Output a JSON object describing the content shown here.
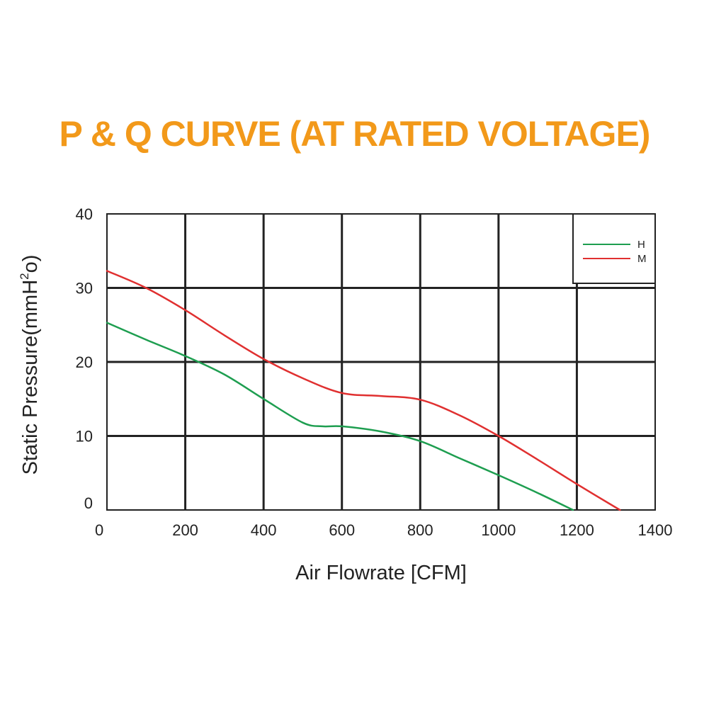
{
  "chart_data": {
    "type": "line",
    "title": "P & Q CURVE (AT RATED VOLTAGE)",
    "xlabel": "Air  Flowrate   [CFM]",
    "ylabel_base": "Static Pressure(mmH",
    "ylabel_sup": "2",
    "ylabel_end": "o)",
    "xlim": [
      0,
      1400
    ],
    "ylim": [
      0,
      40
    ],
    "xticks": [
      0,
      200,
      400,
      600,
      800,
      1000,
      1200,
      1400
    ],
    "yticks": [
      0,
      10,
      20,
      30,
      40
    ],
    "grid": true,
    "legend_position": "top-right",
    "series": [
      {
        "name": "H",
        "color": "#1e9e50",
        "points": [
          [
            0,
            25.3
          ],
          [
            100,
            23.0
          ],
          [
            200,
            20.8
          ],
          [
            300,
            18.3
          ],
          [
            400,
            15.0
          ],
          [
            500,
            11.8
          ],
          [
            550,
            11.3
          ],
          [
            600,
            11.3
          ],
          [
            700,
            10.6
          ],
          [
            800,
            9.3
          ],
          [
            900,
            7.0
          ],
          [
            1000,
            4.7
          ],
          [
            1100,
            2.3
          ],
          [
            1190,
            0
          ]
        ]
      },
      {
        "name": "M",
        "color": "#e03030",
        "points": [
          [
            0,
            32.3
          ],
          [
            100,
            30.0
          ],
          [
            200,
            27.0
          ],
          [
            300,
            23.6
          ],
          [
            400,
            20.4
          ],
          [
            500,
            17.8
          ],
          [
            600,
            15.8
          ],
          [
            700,
            15.4
          ],
          [
            800,
            14.9
          ],
          [
            900,
            12.8
          ],
          [
            1000,
            10.0
          ],
          [
            1100,
            6.8
          ],
          [
            1200,
            3.5
          ],
          [
            1310,
            0
          ]
        ]
      }
    ]
  }
}
